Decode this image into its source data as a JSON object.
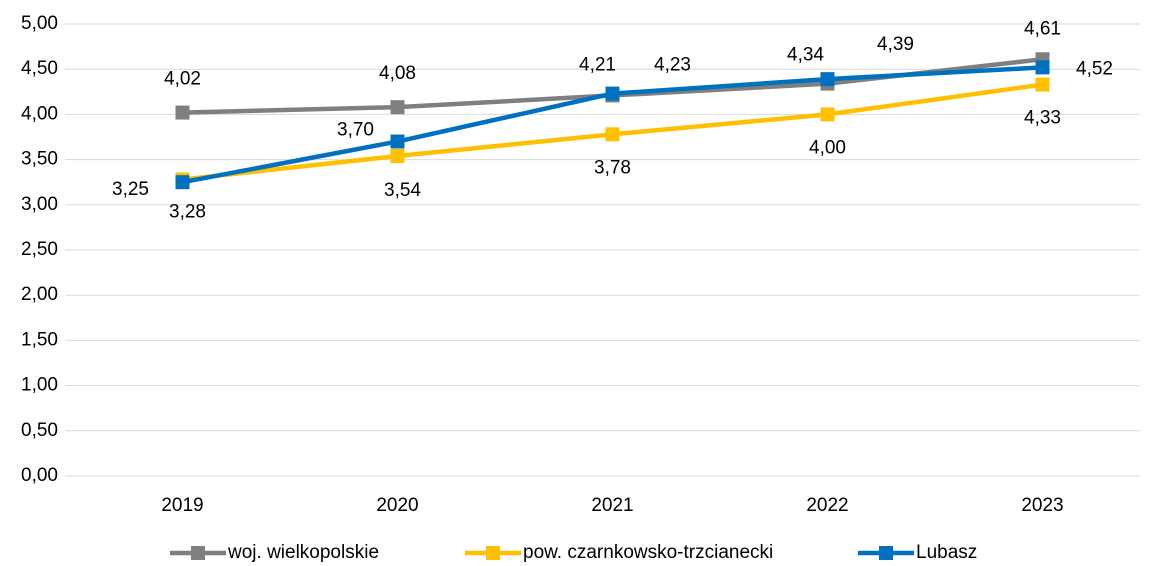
{
  "chart_data": {
    "type": "line",
    "categories": [
      "2019",
      "2020",
      "2021",
      "2022",
      "2023"
    ],
    "series": [
      {
        "name": "woj. wielkopolskie",
        "color": "#7f7f7f",
        "values": [
          4.02,
          4.08,
          4.21,
          4.34,
          4.61
        ],
        "value_labels": [
          "4,02",
          "4,08",
          "4,21",
          "4,34",
          "4,61"
        ]
      },
      {
        "name": "pow. czarnkowsko-trzcianecki",
        "color": "#ffc000",
        "values": [
          3.28,
          3.54,
          3.78,
          4.0,
          4.33
        ],
        "value_labels": [
          "3,28",
          "3,54",
          "3,78",
          "4,00",
          "4,33"
        ]
      },
      {
        "name": "Lubasz",
        "color": "#0070c0",
        "values": [
          3.25,
          3.7,
          4.23,
          4.39,
          4.52
        ],
        "value_labels": [
          "3,25",
          "3,70",
          "4,23",
          "4,39",
          "4,52"
        ]
      }
    ],
    "ylim": [
      0,
      5
    ],
    "yticks": [
      {
        "value": 0,
        "label": "0,00"
      },
      {
        "value": 0.5,
        "label": "0,50"
      },
      {
        "value": 1,
        "label": "1,00"
      },
      {
        "value": 1.5,
        "label": "1,50"
      },
      {
        "value": 2,
        "label": "2,00"
      },
      {
        "value": 2.5,
        "label": "2,50"
      },
      {
        "value": 3,
        "label": "3,00"
      },
      {
        "value": 3.5,
        "label": "3,50"
      },
      {
        "value": 4,
        "label": "4,00"
      },
      {
        "value": 4.5,
        "label": "4,50"
      },
      {
        "value": 5,
        "label": "5,00"
      }
    ],
    "grid": true,
    "legend": "bottom"
  }
}
